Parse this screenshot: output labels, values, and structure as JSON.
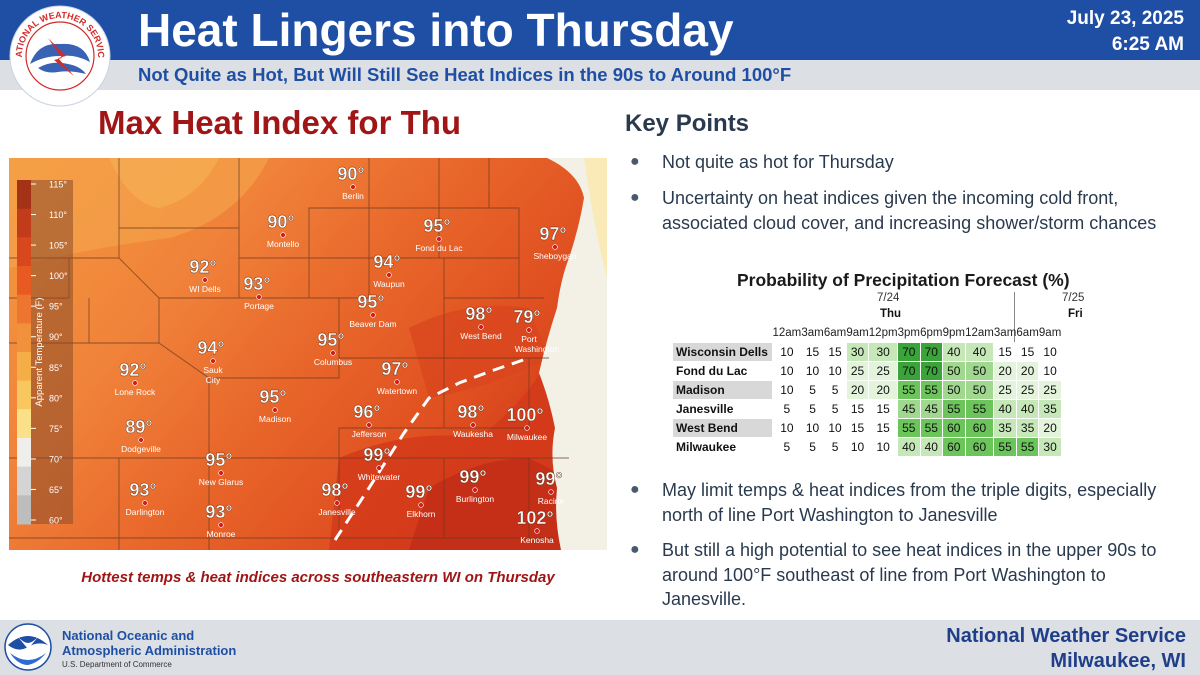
{
  "header": {
    "title": "Heat Lingers into Thursday",
    "date": "July 23, 2025",
    "time": "6:25 AM",
    "subtitle": "Not Quite as Hot, But Will Still See Heat Indices in the 90s to Around 100°F",
    "logo_text": "NATIONAL WEATHER SERVICE",
    "logo_icon": "nws-logo-icon"
  },
  "map": {
    "title": "Max Heat Index for Thu",
    "legend": {
      "label": "Apparent Temperature (F)",
      "ticks": [
        "115°",
        "110°",
        "105°",
        "100°",
        "95°",
        "90°",
        "85°",
        "80°",
        "75°",
        "70°",
        "65°",
        "60°"
      ],
      "colors": [
        "#a43217",
        "#c23b1a",
        "#d9481d",
        "#e85a22",
        "#ee7530",
        "#f2913b",
        "#f5ad48",
        "#f8c760",
        "#fbe08a",
        "#efeeea",
        "#d4d4d4",
        "#bdbdbd"
      ]
    },
    "cities": [
      {
        "name": "Berlin",
        "temp": "90°"
      },
      {
        "name": "Montello",
        "temp": "90°"
      },
      {
        "name": "Fond du Lac",
        "temp": "95°"
      },
      {
        "name": "Sheboygan",
        "temp": "97°"
      },
      {
        "name": "WI Dells",
        "temp": "92°"
      },
      {
        "name": "Portage",
        "temp": "93°"
      },
      {
        "name": "Waupun",
        "temp": "94°"
      },
      {
        "name": "Beaver Dam",
        "temp": "95°"
      },
      {
        "name": "West Bend",
        "temp": "98°"
      },
      {
        "name": "Port Washington",
        "temp": "79°"
      },
      {
        "name": "Sauk City",
        "temp": "94°"
      },
      {
        "name": "Columbus",
        "temp": "95°"
      },
      {
        "name": "Lone Rock",
        "temp": "92°"
      },
      {
        "name": "Watertown",
        "temp": "97°"
      },
      {
        "name": "Madison",
        "temp": "95°"
      },
      {
        "name": "Dodgeville",
        "temp": "89°"
      },
      {
        "name": "Jefferson",
        "temp": "96°"
      },
      {
        "name": "Waukesha",
        "temp": "98°"
      },
      {
        "name": "Milwaukee",
        "temp": "100°"
      },
      {
        "name": "New Glarus",
        "temp": "95°"
      },
      {
        "name": "Whitewater",
        "temp": "99°"
      },
      {
        "name": "Burlington",
        "temp": "99°"
      },
      {
        "name": "Racine",
        "temp": "99°"
      },
      {
        "name": "Darlington",
        "temp": "93°"
      },
      {
        "name": "Janesville",
        "temp": "98°"
      },
      {
        "name": "Elkhorn",
        "temp": "99°"
      },
      {
        "name": "Kenosha",
        "temp": "102°"
      },
      {
        "name": "Monroe",
        "temp": "93°"
      }
    ],
    "caption": "Hottest temps & heat indices across southeastern WI on Thursday"
  },
  "key_points": {
    "title": "Key Points",
    "bullets": [
      "Not quite as hot for Thursday",
      "Uncertainty on heat indices given the incoming cold front, associated cloud cover, and increasing shower/storm chances",
      "May limit temps & heat indices from the triple digits, especially north of line Port Washington to Janesville",
      "But still a high potential to see heat indices in the upper 90s to around 100°F southeast of line from Port Washington to Janesville."
    ]
  },
  "pop_table": {
    "title": "Probability of Precipitation Forecast (%)",
    "days": [
      {
        "date": "7/24",
        "day": "Thu"
      },
      {
        "date": "7/25",
        "day": "Fri"
      }
    ],
    "hours": [
      "12am",
      "3am",
      "6am",
      "9am",
      "12pm",
      "3pm",
      "6pm",
      "9pm",
      "12am",
      "3am",
      "6am",
      "9am"
    ],
    "rows": [
      {
        "location": "Wisconsin Dells",
        "values": [
          "10",
          "15",
          "15",
          "30",
          "30",
          "70",
          "70",
          "40",
          "40",
          "15",
          "15",
          "10"
        ]
      },
      {
        "location": "Fond du Lac",
        "values": [
          "10",
          "10",
          "10",
          "25",
          "25",
          "70",
          "70",
          "50",
          "50",
          "20",
          "20",
          "10"
        ]
      },
      {
        "location": "Madison",
        "values": [
          "10",
          "5",
          "5",
          "20",
          "20",
          "55",
          "55",
          "50",
          "50",
          "25",
          "25",
          "25"
        ]
      },
      {
        "location": "Janesville",
        "values": [
          "5",
          "5",
          "5",
          "15",
          "15",
          "45",
          "45",
          "55",
          "55",
          "40",
          "40",
          "35"
        ]
      },
      {
        "location": "West Bend",
        "values": [
          "10",
          "10",
          "10",
          "15",
          "15",
          "55",
          "55",
          "60",
          "60",
          "35",
          "35",
          "20"
        ]
      },
      {
        "location": "Milwaukee",
        "values": [
          "5",
          "5",
          "5",
          "10",
          "10",
          "40",
          "40",
          "60",
          "60",
          "55",
          "55",
          "30"
        ]
      }
    ]
  },
  "footer": {
    "agency_line1": "National Oceanic and",
    "agency_line2": "Atmospheric Administration",
    "department": "U.S. Department of Commerce",
    "office_line1": "National Weather Service",
    "office_line2": "Milwaukee, WI",
    "noaa_icon": "noaa-logo-icon"
  },
  "colors": {
    "brand_blue": "#1f4fa5",
    "title_red": "#a01515",
    "text_dark": "#2a3a4e"
  }
}
